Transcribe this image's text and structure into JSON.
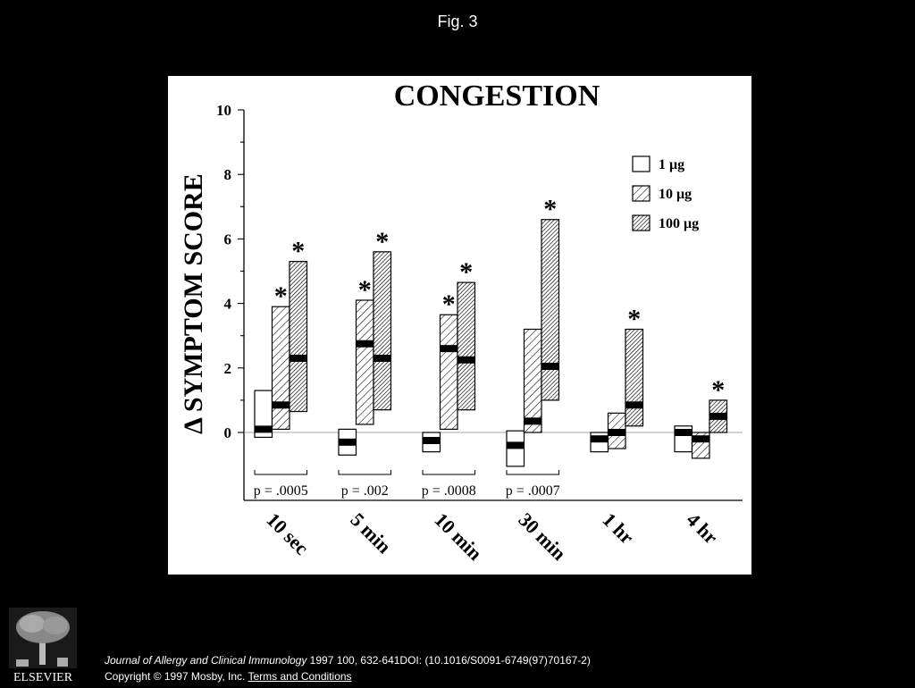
{
  "figure_title": "Fig. 3",
  "chart_data": {
    "type": "bar",
    "subtype": "floating range bars with median markers",
    "title": "CONGESTION",
    "ylabel": "Δ SYMPTOM SCORE",
    "xlabel": "",
    "ylim": [
      -1,
      10
    ],
    "yticks": [
      0,
      2,
      4,
      6,
      8,
      10
    ],
    "grid": false,
    "legend_position": "top-right",
    "categories": [
      "10 sec",
      "5 min",
      "10 min",
      "30 min",
      "1 hr",
      "4 hr"
    ],
    "series": [
      {
        "name": "1 μg",
        "fill": "open",
        "values": [
          {
            "low": -0.15,
            "high": 1.3,
            "median": 0.1
          },
          {
            "low": -0.7,
            "high": 0.1,
            "median": -0.3
          },
          {
            "low": -0.6,
            "high": 0.0,
            "median": -0.25
          },
          {
            "low": -1.05,
            "high": 0.05,
            "median": -0.4
          },
          {
            "low": -0.6,
            "high": 0.0,
            "median": -0.2
          },
          {
            "low": -0.6,
            "high": 0.2,
            "median": 0.0
          }
        ],
        "significant": [
          false,
          false,
          false,
          false,
          false,
          false
        ]
      },
      {
        "name": "10 μg",
        "fill": "sparse-hatch",
        "values": [
          {
            "low": 0.1,
            "high": 3.9,
            "median": 0.85
          },
          {
            "low": 0.25,
            "high": 4.1,
            "median": 2.75
          },
          {
            "low": 0.1,
            "high": 3.65,
            "median": 2.6
          },
          {
            "low": 0.0,
            "high": 3.2,
            "median": 0.35
          },
          {
            "low": -0.5,
            "high": 0.6,
            "median": 0.0
          },
          {
            "low": -0.8,
            "high": 0.0,
            "median": -0.2
          }
        ],
        "significant": [
          true,
          true,
          true,
          false,
          false,
          false
        ]
      },
      {
        "name": "100 μg",
        "fill": "dense-hatch",
        "values": [
          {
            "low": 0.65,
            "high": 5.3,
            "median": 2.3
          },
          {
            "low": 0.7,
            "high": 5.6,
            "median": 2.3
          },
          {
            "low": 0.7,
            "high": 4.65,
            "median": 2.25
          },
          {
            "low": 1.0,
            "high": 6.6,
            "median": 2.05
          },
          {
            "low": 0.2,
            "high": 3.2,
            "median": 0.85
          },
          {
            "low": 0.0,
            "high": 1.0,
            "median": 0.5
          }
        ],
        "significant": [
          true,
          true,
          true,
          true,
          true,
          true
        ]
      }
    ],
    "significance_marker": "*",
    "p_values": [
      "p = .0005",
      "p = .002",
      "p = .0008",
      "p = .0007"
    ]
  },
  "citation": {
    "journal": "Journal of Allergy and Clinical Immunology",
    "details": " 1997 100, 632-641DOI: (10.1016/S0091-6749(97)70167-2)",
    "copyright": "Copyright © 1997 Mosby, Inc. ",
    "terms_link": "Terms and Conditions"
  },
  "publisher": {
    "logo_text": "ELSEVIER",
    "icon": "elsevier-tree-logo"
  }
}
